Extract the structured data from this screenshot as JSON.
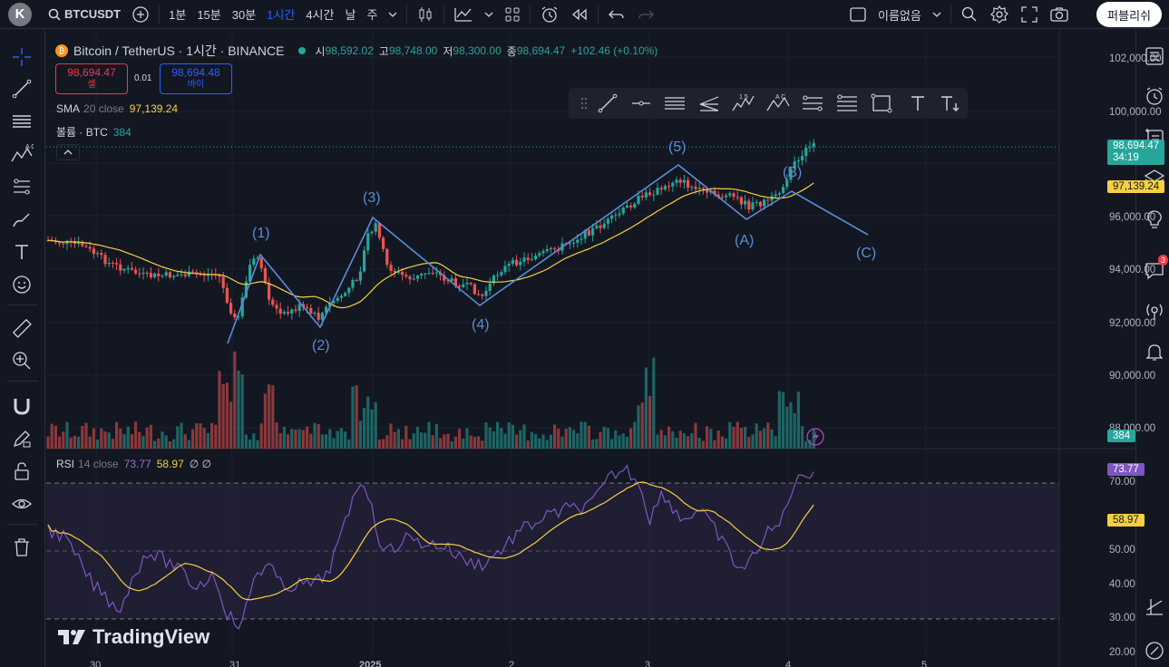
{
  "topbar": {
    "logo_letter": "K",
    "symbol": "BTCUSDT",
    "intervals": [
      "1분",
      "15분",
      "30분",
      "1시간",
      "4시간",
      "날",
      "주"
    ],
    "active_interval": "1시간",
    "layout_name": "이름없음",
    "publish_label": "퍼블리쉬"
  },
  "legend": {
    "title": "Bitcoin / TetherUS · 1시간 · BINANCE",
    "open_label": "시",
    "open": "98,592.02",
    "high_label": "고",
    "high": "98,748.00",
    "low_label": "저",
    "low": "98,300.00",
    "close_label": "종",
    "close": "98,694.47",
    "change": "+102.46 (+0.10%)",
    "sell_price": "98,694.47",
    "sell_label": "셀",
    "spread": "0.01",
    "buy_price": "98,694.48",
    "buy_label": "바이",
    "sma_label": "SMA",
    "sma_params": "20 close",
    "sma_value": "97,139.24",
    "vol_label": "볼륨 · BTC",
    "vol_value": "384",
    "rsi_label": "RSI",
    "rsi_params": "14 close",
    "rsi_value": "73.77",
    "rsi_ma_value": "58.97",
    "rsi_extra": "∅ ∅"
  },
  "price_axis": {
    "labels": [
      "102,000.00",
      "100,000.00",
      "96,000.00",
      "94,000.00",
      "92,000.00",
      "90,000.00",
      "88,000.00"
    ],
    "last_price": "98,694.47",
    "countdown": "34:19",
    "sma_tag": "97,139.24",
    "vol_tag": "384"
  },
  "rsi_axis": {
    "labels": [
      "70.00",
      "50.00",
      "40.00",
      "30.00",
      "20.00"
    ],
    "rsi_tag": "73.77",
    "ma_tag": "58.97"
  },
  "time_axis": {
    "labels": [
      "30",
      "31",
      "2025",
      "2",
      "3",
      "4",
      "5"
    ]
  },
  "wave_labels": [
    "(1)",
    "(2)",
    "(3)",
    "(4)",
    "(5)",
    "(A)",
    "(B)",
    "(C)"
  ],
  "watermark": "TradingView",
  "right_badge": "3",
  "colors": {
    "up": "#26a69a",
    "down": "#ef5350",
    "sma": "#f5d142",
    "rsi": "#7e57c2",
    "wave": "#5b8dd6",
    "accent": "#2962ff"
  }
}
